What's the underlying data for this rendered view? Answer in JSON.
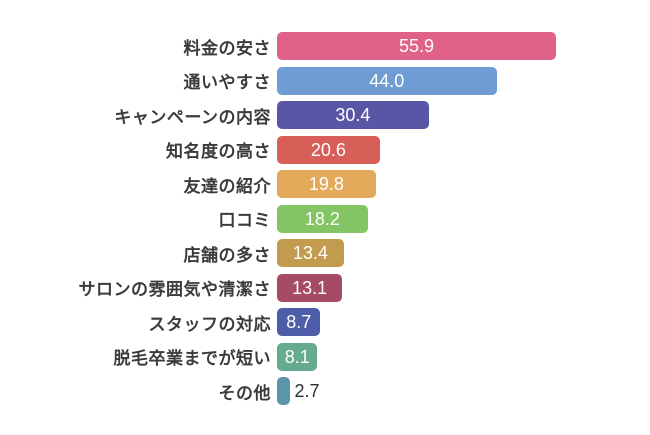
{
  "chart_data": {
    "type": "bar",
    "orientation": "horizontal",
    "title": "",
    "xlabel": "",
    "ylabel": "",
    "xlim": [
      0,
      73
    ],
    "grid": false,
    "legend": false,
    "categories": [
      "料金の安さ",
      "通いやすさ",
      "キャンペーンの内容",
      "知名度の高さ",
      "友達の紹介",
      "口コミ",
      "店舗の多さ",
      "サロンの雰囲気や清潔さ",
      "スタッフの対応",
      "脱毛卒業までが短い",
      "その他"
    ],
    "values": [
      55.9,
      44.0,
      30.4,
      20.6,
      19.8,
      18.2,
      13.4,
      13.1,
      8.7,
      8.1,
      2.7
    ],
    "value_labels": [
      "55.9",
      "44.0",
      "30.4",
      "20.6",
      "19.8",
      "18.2",
      "13.4",
      "13.1",
      "8.7",
      "8.1",
      "2.7"
    ],
    "bar_colors": [
      "#e06289",
      "#6e9cd3",
      "#5a56a6",
      "#d75f58",
      "#e3aa5c",
      "#83c464",
      "#c39b4f",
      "#a64b64",
      "#4e5da7",
      "#67ab8e",
      "#5c94a9"
    ],
    "colors": {
      "background": "#ffffff",
      "category_label": "#3b3b3b",
      "value_label_inside": "#ffffff",
      "value_label_outside": "#2e2e2e"
    }
  }
}
